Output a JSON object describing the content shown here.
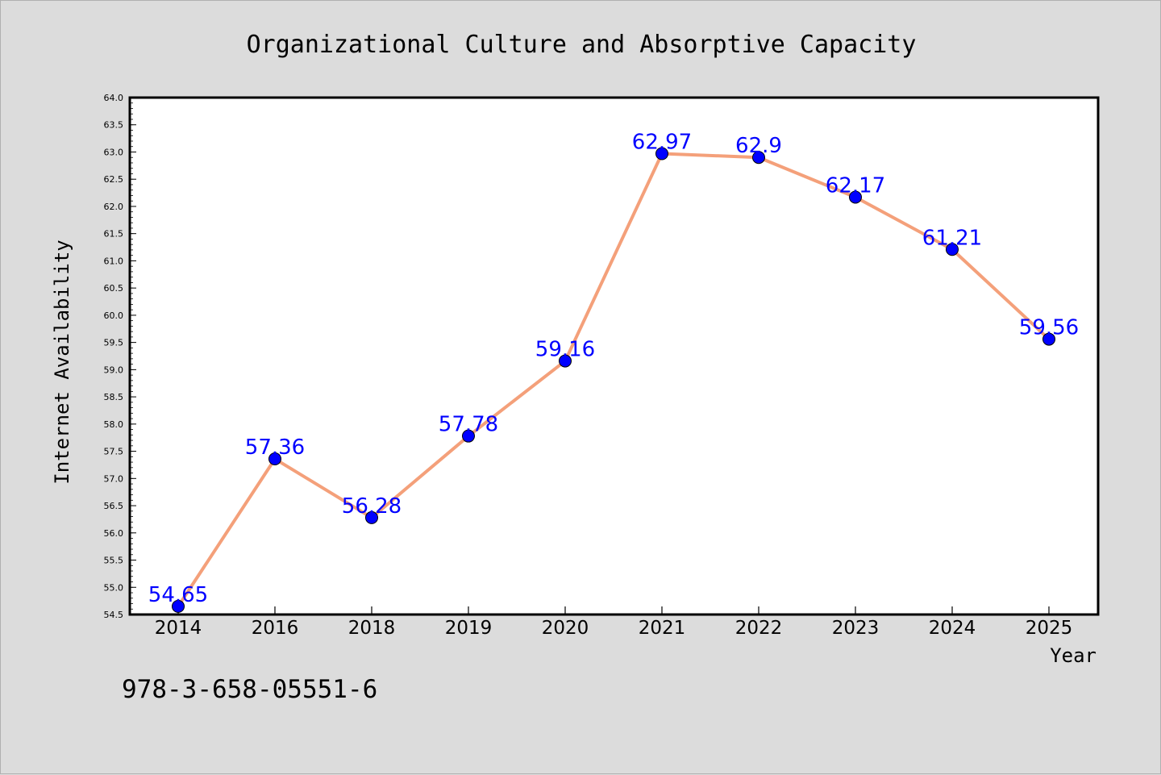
{
  "chart_data": {
    "type": "line",
    "title": "Organizational Culture and Absorptive Capacity",
    "xlabel": "Year",
    "ylabel": "Internet Availability",
    "categories": [
      "2014",
      "2016",
      "2018",
      "2019",
      "2020",
      "2021",
      "2022",
      "2023",
      "2024",
      "2025"
    ],
    "series": [
      {
        "values": [
          54.65,
          57.36,
          56.28,
          57.78,
          59.16,
          62.97,
          62.9,
          62.17,
          61.21,
          59.56
        ],
        "data_labels": [
          "54.65",
          "57.36",
          "56.28",
          "57.78",
          "59.16",
          "62.97",
          "62.9",
          "62.17",
          "61.21",
          "59.56"
        ],
        "line_color": "#f4a07a",
        "marker_color": "#0000ff"
      }
    ],
    "ylim": [
      54.5,
      64.0
    ],
    "yticks": [
      "54.5",
      "55.0",
      "55.5",
      "56.0",
      "56.5",
      "57.0",
      "57.5",
      "58.0",
      "58.5",
      "59.0",
      "59.5",
      "60.0",
      "60.5",
      "61.0",
      "61.5",
      "62.0",
      "62.5",
      "63.0",
      "63.5",
      "64.0"
    ],
    "grid": false,
    "legend": "none",
    "background": "#dcdcdc",
    "plot_background": "#ffffff"
  },
  "footer": {
    "isbn": "978-3-658-05551-6"
  }
}
